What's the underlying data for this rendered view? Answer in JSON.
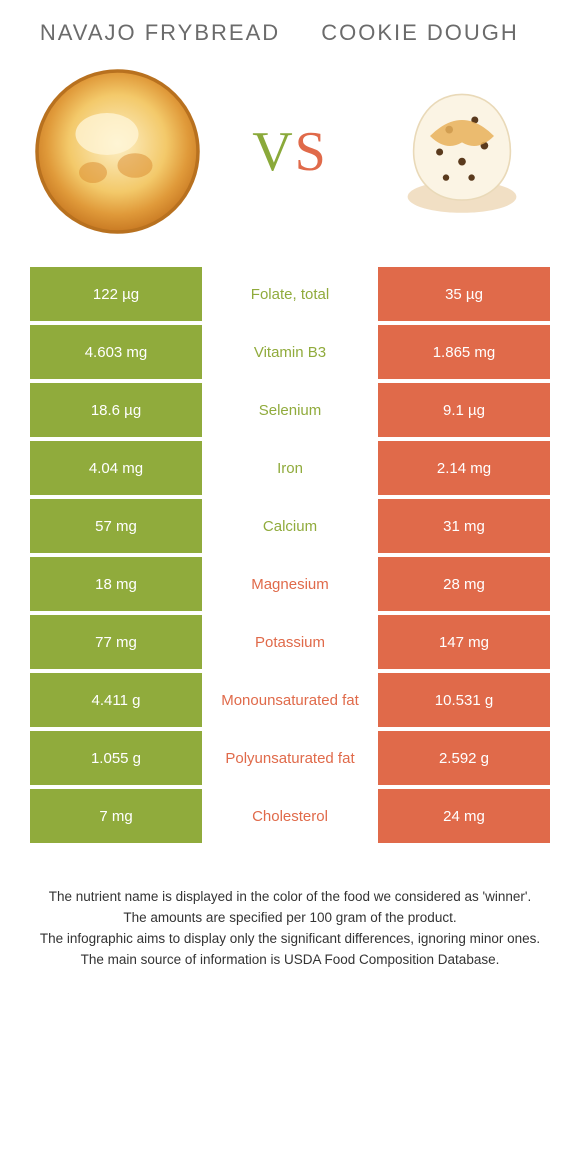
{
  "colors": {
    "green": "#90ab3c",
    "orange": "#e06a4a",
    "title": "#6b6b6b"
  },
  "left_food": {
    "name": "NAVAJO FRYBREAD"
  },
  "right_food": {
    "name": "COOKIE DOUGH"
  },
  "vs": {
    "v": "V",
    "s": "S"
  },
  "rows": [
    {
      "label": "Folate, total",
      "left": "122 µg",
      "right": "35 µg",
      "winner": "left"
    },
    {
      "label": "Vitamin B3",
      "left": "4.603 mg",
      "right": "1.865 mg",
      "winner": "left"
    },
    {
      "label": "Selenium",
      "left": "18.6 µg",
      "right": "9.1 µg",
      "winner": "left"
    },
    {
      "label": "Iron",
      "left": "4.04 mg",
      "right": "2.14 mg",
      "winner": "left"
    },
    {
      "label": "Calcium",
      "left": "57 mg",
      "right": "31 mg",
      "winner": "left"
    },
    {
      "label": "Magnesium",
      "left": "18 mg",
      "right": "28 mg",
      "winner": "right"
    },
    {
      "label": "Potassium",
      "left": "77 mg",
      "right": "147 mg",
      "winner": "right"
    },
    {
      "label": "Monounsaturated fat",
      "left": "4.411 g",
      "right": "10.531 g",
      "winner": "right"
    },
    {
      "label": "Polyunsaturated fat",
      "left": "1.055 g",
      "right": "2.592 g",
      "winner": "right"
    },
    {
      "label": "Cholesterol",
      "left": "7 mg",
      "right": "24 mg",
      "winner": "right"
    }
  ],
  "footer": {
    "l1": "The nutrient name is displayed in the color of the food we considered as 'winner'.",
    "l2": "The amounts are specified per 100 gram of the product.",
    "l3": "The infographic aims to display only the significant differences, ignoring minor ones.",
    "l4": "The main source of information is USDA Food Composition Database."
  }
}
